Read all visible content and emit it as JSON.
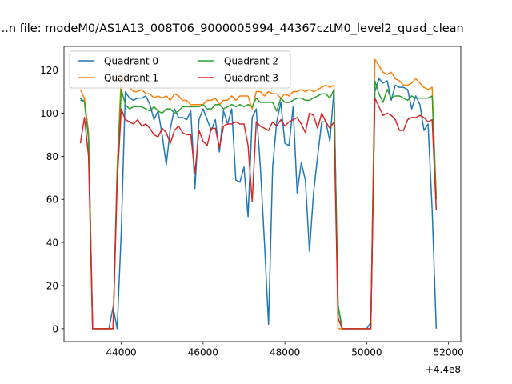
{
  "chart_data": {
    "type": "line",
    "title": "...n file: modeM0/AS1A13_008T06_9000005994_44367cztM0_level2_quad_clean",
    "xlabel": "",
    "ylabel": "",
    "x_offset_label": "+4.4e8",
    "xlim": [
      42600,
      52300
    ],
    "ylim": [
      -6,
      131
    ],
    "x_ticks": [
      44000,
      46000,
      48000,
      50000,
      52000
    ],
    "y_ticks": [
      0,
      20,
      40,
      60,
      80,
      100,
      120
    ],
    "x_tick_labels": [
      "44000",
      "46000",
      "48000",
      "50000",
      "52000"
    ],
    "y_tick_labels": [
      "0",
      "20",
      "40",
      "60",
      "80",
      "100",
      "120"
    ],
    "grid": false,
    "legend": {
      "placement": "top-left",
      "columns": 2
    },
    "series": [
      {
        "name": "Quadrant 0",
        "color": "#1f77b4",
        "x": [
          43000,
          43100,
          43200,
          43300,
          43400,
          43500,
          43600,
          43700,
          43800,
          43900,
          44000,
          44100,
          44200,
          44300,
          44400,
          44500,
          44600,
          44700,
          44800,
          44900,
          45000,
          45100,
          45200,
          45300,
          45400,
          45500,
          45600,
          45700,
          45800,
          45900,
          46000,
          46100,
          46200,
          46300,
          46400,
          46500,
          46600,
          46700,
          46800,
          46900,
          47000,
          47100,
          47200,
          47300,
          47400,
          47500,
          47600,
          47700,
          47800,
          47900,
          48000,
          48100,
          48200,
          48300,
          48400,
          48500,
          48600,
          48700,
          48800,
          48900,
          49000,
          49100,
          49200,
          49300,
          49400,
          49500,
          49600,
          49700,
          49800,
          49900,
          50000,
          50100,
          50200,
          50300,
          50400,
          50500,
          50600,
          50700,
          50800,
          50900,
          51000,
          51100,
          51200,
          51300,
          51400,
          51500,
          51600,
          51700
        ],
        "y": [
          106,
          106,
          91,
          0,
          0,
          0,
          0,
          0,
          10,
          0,
          45,
          110,
          107,
          106,
          107,
          107,
          108,
          104,
          97,
          101,
          90,
          76,
          93,
          102,
          98,
          98,
          97,
          101,
          65,
          97,
          102,
          97,
          92,
          97,
          82,
          101,
          95,
          102,
          69,
          68,
          75,
          52,
          98,
          102,
          75,
          40,
          2,
          75,
          96,
          105,
          86,
          85,
          103,
          63,
          77,
          69,
          36,
          63,
          80,
          96,
          96,
          87,
          111,
          10,
          0,
          0,
          0,
          0,
          0,
          0,
          0,
          3,
          110,
          116,
          114,
          115,
          106,
          113,
          112,
          112,
          111,
          102,
          108,
          104,
          92,
          95,
          55,
          0
        ]
      },
      {
        "name": "Quadrant 1",
        "color": "#ff7f0e",
        "x": [
          43000,
          43100,
          43200,
          43300,
          43400,
          43500,
          43600,
          43700,
          43800,
          43900,
          44000,
          44100,
          44200,
          44300,
          44400,
          44500,
          44600,
          44700,
          44800,
          44900,
          45000,
          45100,
          45200,
          45300,
          45400,
          45500,
          45600,
          45700,
          45800,
          45900,
          46000,
          46100,
          46200,
          46300,
          46400,
          46500,
          46600,
          46700,
          46800,
          46900,
          47000,
          47100,
          47200,
          47300,
          47400,
          47500,
          47600,
          47700,
          47800,
          47900,
          48000,
          48100,
          48200,
          48300,
          48400,
          48500,
          48600,
          48700,
          48800,
          48900,
          49000,
          49100,
          49200,
          49300,
          49400,
          49500,
          49600,
          49700,
          49800,
          49900,
          50000,
          50100,
          50200,
          50300,
          50400,
          50500,
          50600,
          50700,
          50800,
          50900,
          51000,
          51100,
          51200,
          51300,
          51400,
          51500,
          51600,
          51700
        ],
        "y": [
          111,
          107,
          90,
          0,
          0,
          0,
          0,
          0,
          0,
          75,
          118,
          115,
          112,
          110,
          110,
          111,
          109,
          109,
          107,
          108,
          107,
          108,
          106,
          109,
          108,
          106,
          106,
          104,
          104,
          104,
          104,
          106,
          106,
          107,
          104,
          106,
          106,
          108,
          106,
          108,
          108,
          108,
          102,
          110,
          110,
          108,
          110,
          109,
          109,
          107,
          109,
          108,
          110,
          110,
          111,
          110,
          111,
          110,
          111,
          112,
          113,
          112,
          113,
          0,
          0,
          0,
          0,
          0,
          0,
          0,
          0,
          0,
          125,
          122,
          119,
          118,
          119,
          116,
          115,
          113,
          113,
          114,
          116,
          114,
          112,
          111,
          112,
          60
        ]
      },
      {
        "name": "Quadrant 2",
        "color": "#2ca02c",
        "x": [
          43000,
          43100,
          43200,
          43300,
          43400,
          43500,
          43600,
          43700,
          43800,
          43900,
          44000,
          44100,
          44200,
          44300,
          44400,
          44500,
          44600,
          44700,
          44800,
          44900,
          45000,
          45100,
          45200,
          45300,
          45400,
          45500,
          45600,
          45700,
          45800,
          45900,
          46000,
          46100,
          46200,
          46300,
          46400,
          46500,
          46600,
          46700,
          46800,
          46900,
          47000,
          47100,
          47200,
          47300,
          47400,
          47500,
          47600,
          47700,
          47800,
          47900,
          48000,
          48100,
          48200,
          48300,
          48400,
          48500,
          48600,
          48700,
          48800,
          48900,
          49000,
          49100,
          49200,
          49300,
          49400,
          49500,
          49600,
          49700,
          49800,
          49900,
          50000,
          50100,
          50200,
          50300,
          50400,
          50500,
          50600,
          50700,
          50800,
          50900,
          51000,
          51100,
          51200,
          51300,
          51400,
          51500,
          51600,
          51700
        ],
        "y": [
          107,
          105,
          88,
          0,
          0,
          0,
          0,
          0,
          0,
          72,
          111,
          104,
          102,
          103,
          103,
          103,
          102,
          101,
          103,
          101,
          100,
          102,
          102,
          100,
          101,
          103,
          103,
          103,
          103,
          103,
          104,
          102,
          102,
          104,
          104,
          102,
          103,
          104,
          103,
          104,
          103,
          104,
          103,
          107,
          105,
          105,
          105,
          105,
          101,
          107,
          105,
          105,
          106,
          107,
          107,
          106,
          106,
          107,
          108,
          109,
          109,
          107,
          111,
          11,
          0,
          0,
          0,
          0,
          0,
          0,
          0,
          0,
          115,
          109,
          105,
          111,
          107,
          108,
          108,
          107,
          106,
          108,
          107,
          107,
          107,
          107,
          108,
          60
        ]
      },
      {
        "name": "Quadrant 3",
        "color": "#d62728",
        "x": [
          43000,
          43100,
          43200,
          43300,
          43400,
          43500,
          43600,
          43700,
          43800,
          43900,
          44000,
          44100,
          44200,
          44300,
          44400,
          44500,
          44600,
          44700,
          44800,
          44900,
          45000,
          45100,
          45200,
          45300,
          45400,
          45500,
          45600,
          45700,
          45800,
          45900,
          46000,
          46100,
          46200,
          46300,
          46400,
          46500,
          46600,
          46700,
          46800,
          46900,
          47000,
          47100,
          47200,
          47300,
          47400,
          47500,
          47600,
          47700,
          47800,
          47900,
          48000,
          48100,
          48200,
          48300,
          48400,
          48500,
          48600,
          48700,
          48800,
          48900,
          49000,
          49100,
          49200,
          49300,
          49400,
          49500,
          49600,
          49700,
          49800,
          49900,
          50000,
          50100,
          50200,
          50300,
          50400,
          50500,
          50600,
          50700,
          50800,
          50900,
          51000,
          51100,
          51200,
          51300,
          51400,
          51500,
          51600,
          51700
        ],
        "y": [
          86,
          98,
          80,
          0,
          0,
          0,
          0,
          0,
          0,
          68,
          102,
          97,
          96,
          95,
          97,
          94,
          95,
          93,
          90,
          89,
          93,
          91,
          86,
          92,
          94,
          91,
          90,
          90,
          72,
          92,
          87,
          85,
          93,
          93,
          84,
          94,
          95,
          95,
          96,
          95,
          95,
          85,
          59,
          96,
          94,
          93,
          92,
          96,
          94,
          97,
          94,
          96,
          97,
          98,
          95,
          91,
          100,
          99,
          93,
          100,
          96,
          93,
          96,
          5,
          0,
          0,
          0,
          0,
          0,
          0,
          0,
          0,
          107,
          103,
          99,
          100,
          99,
          97,
          92,
          92,
          97,
          98,
          98,
          99,
          98,
          96,
          97,
          55
        ]
      }
    ]
  }
}
